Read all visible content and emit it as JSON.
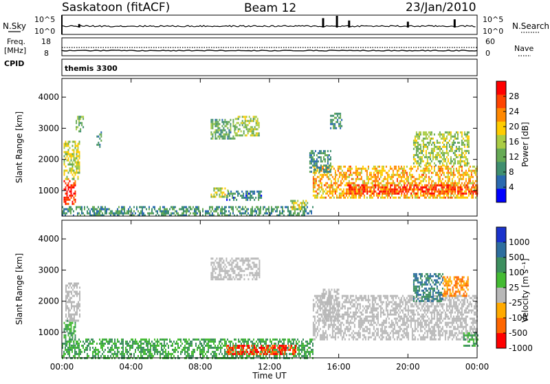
{
  "header": {
    "station": "Saskatoon (fitACF)",
    "beam": "Beam 12",
    "date": "23/Jan/2010"
  },
  "noise_panel": {
    "left_label": "N.Sky",
    "right_label": "N.Search",
    "left_ticks": [
      "10^5",
      "10^0"
    ],
    "right_ticks": [
      "10^5",
      "10^0"
    ]
  },
  "freq_panel": {
    "left_label_1": "Freq.",
    "left_label_2": "[MHz]",
    "left_ticks": [
      "18",
      "8"
    ],
    "right_label": "Nave",
    "right_ticks": [
      "60",
      "0"
    ]
  },
  "cpid_panel": {
    "label": "CPID",
    "program": "themis 3300"
  },
  "range_axis": {
    "label": "Slant Range [km]",
    "ticks": [
      "4000",
      "3000",
      "2000",
      "1000"
    ]
  },
  "time_axis": {
    "label": "Time UT",
    "ticks": [
      "00:00",
      "04:00",
      "08:00",
      "12:00",
      "16:00",
      "20:00",
      "00:00"
    ]
  },
  "power_scale": {
    "label": "Power [dB]",
    "ticks": [
      "28",
      "24",
      "20",
      "16",
      "12",
      "8",
      "4"
    ],
    "colors": [
      "#ff0000",
      "#ff4400",
      "#ff8800",
      "#ffcc00",
      "#aacc44",
      "#66aa55",
      "#3f8f6f",
      "#2a6ab0",
      "#0000ff"
    ]
  },
  "velocity_scale": {
    "label": "Velocity [m s⁻¹]",
    "ticks": [
      "1000",
      "500",
      "100",
      "25",
      "-25",
      "-100",
      "-500",
      "-1000"
    ],
    "colors": [
      "#1a33cc",
      "#2e6e9e",
      "#3d8f5f",
      "#44bb33",
      "#b8b8b8",
      "#ffaa00",
      "#ff6600",
      "#ff0000"
    ]
  },
  "chart_data": {
    "type": "heatmap",
    "x_range_hours": [
      0,
      24
    ],
    "y_range_km": [
      180,
      4600
    ],
    "power_regions": [
      {
        "t0": 0.1,
        "t1": 0.8,
        "r0": 600,
        "r1": 1400,
        "level": 28
      },
      {
        "t0": 0.1,
        "t1": 1.0,
        "r0": 1400,
        "r1": 2600,
        "level": 16
      },
      {
        "t0": 0.8,
        "t1": 1.2,
        "r0": 2900,
        "r1": 3400,
        "level": 10
      },
      {
        "t0": 2.0,
        "t1": 2.3,
        "r0": 2400,
        "r1": 2900,
        "level": 8
      },
      {
        "t0": 8.6,
        "t1": 10.0,
        "r0": 2700,
        "r1": 3300,
        "level": 10
      },
      {
        "t0": 10.0,
        "t1": 11.4,
        "r0": 2800,
        "r1": 3400,
        "level": 14
      },
      {
        "t0": 8.6,
        "t1": 9.6,
        "r0": 800,
        "r1": 1100,
        "level": 16
      },
      {
        "t0": 0.0,
        "t1": 14.5,
        "r0": 200,
        "r1": 500,
        "level": 8
      },
      {
        "t0": 9.5,
        "t1": 11.5,
        "r0": 700,
        "r1": 1000,
        "level": 6
      },
      {
        "t0": 13.2,
        "t1": 14.2,
        "r0": 400,
        "r1": 700,
        "level": 16
      },
      {
        "t0": 14.5,
        "t1": 24.0,
        "r0": 800,
        "r1": 1800,
        "level": 20
      },
      {
        "t0": 16.5,
        "t1": 24.0,
        "r0": 900,
        "r1": 1200,
        "level": 28
      },
      {
        "t0": 14.3,
        "t1": 15.5,
        "r0": 1600,
        "r1": 2300,
        "level": 8
      },
      {
        "t0": 20.3,
        "t1": 23.5,
        "r0": 1800,
        "r1": 2900,
        "level": 14
      },
      {
        "t0": 15.5,
        "t1": 16.2,
        "r0": 3000,
        "r1": 3500,
        "level": 8
      }
    ],
    "velocity_regions": [
      {
        "t0": 0.1,
        "t1": 0.8,
        "r0": 500,
        "r1": 1400,
        "level": 100
      },
      {
        "t0": 0.2,
        "t1": 1.0,
        "r0": 1400,
        "r1": 2600,
        "level": 0
      },
      {
        "t0": 8.6,
        "t1": 11.4,
        "r0": 2700,
        "r1": 3400,
        "level": 0
      },
      {
        "t0": 0.0,
        "t1": 14.5,
        "r0": 200,
        "r1": 800,
        "level": 100
      },
      {
        "t0": 9.5,
        "t1": 13.5,
        "r0": 300,
        "r1": 600,
        "level": -500
      },
      {
        "t0": 14.5,
        "t1": 24.0,
        "r0": 800,
        "r1": 2200,
        "level": 0
      },
      {
        "t0": 15.0,
        "t1": 16.0,
        "r0": 1400,
        "r1": 2400,
        "level": 0
      },
      {
        "t0": 20.3,
        "t1": 22.0,
        "r0": 2000,
        "r1": 2900,
        "level": 500
      },
      {
        "t0": 22.0,
        "t1": 23.5,
        "r0": 2200,
        "r1": 2800,
        "level": -100
      },
      {
        "t0": 23.2,
        "t1": 24.0,
        "r0": 600,
        "r1": 1000,
        "level": 100
      }
    ],
    "noise_sky_spikes": [
      {
        "t": 15.1,
        "h": 0.8
      },
      {
        "t": 15.9,
        "h": 1.0
      },
      {
        "t": 16.6,
        "h": 0.6
      },
      {
        "t": 20.0,
        "h": 0.5
      },
      {
        "t": 22.7,
        "h": 0.7
      },
      {
        "t": 1.0,
        "h": 0.3
      }
    ]
  }
}
